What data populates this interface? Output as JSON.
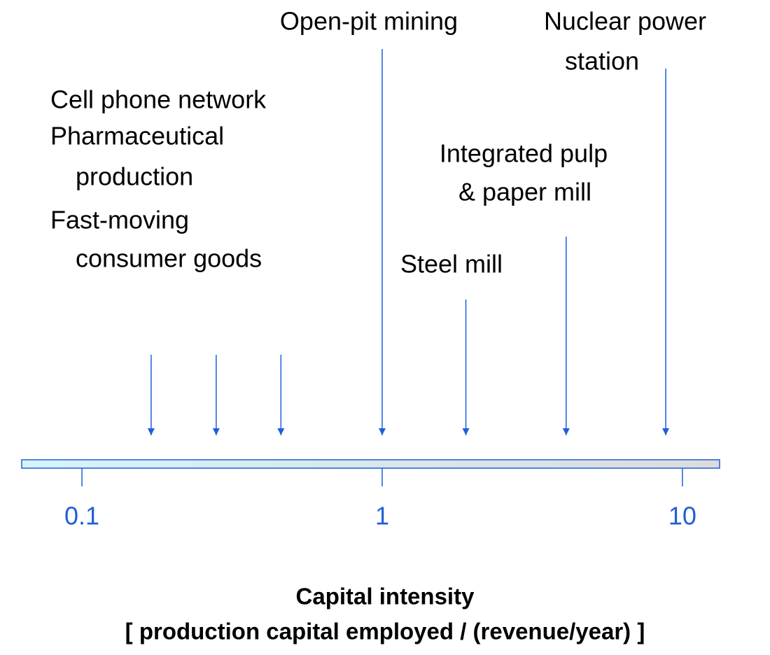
{
  "chart_data": {
    "type": "arrows",
    "x_label": [
      "Capital intensity",
      "[ production capital employed / (revenue/year) ]"
    ],
    "labels": [
      [
        "Cell phone network"
      ],
      [
        "Pharmaceutical",
        "production"
      ],
      [
        "Fast-moving",
        "consumer goods"
      ],
      [
        "Open-pit mining"
      ],
      [
        "Steel mill"
      ],
      [
        "Integrated pulp",
        "& paper mill"
      ],
      [
        "Nuclear power",
        "station"
      ]
    ],
    "values": [
      0.17,
      0.28,
      0.46,
      1,
      1.9,
      4.1,
      8.8
    ],
    "color": "#1f5fd6",
    "xlim": [
      0.063,
      13.3
    ],
    "xticks": [
      0.1,
      1,
      10
    ],
    "log_scale": true
  }
}
